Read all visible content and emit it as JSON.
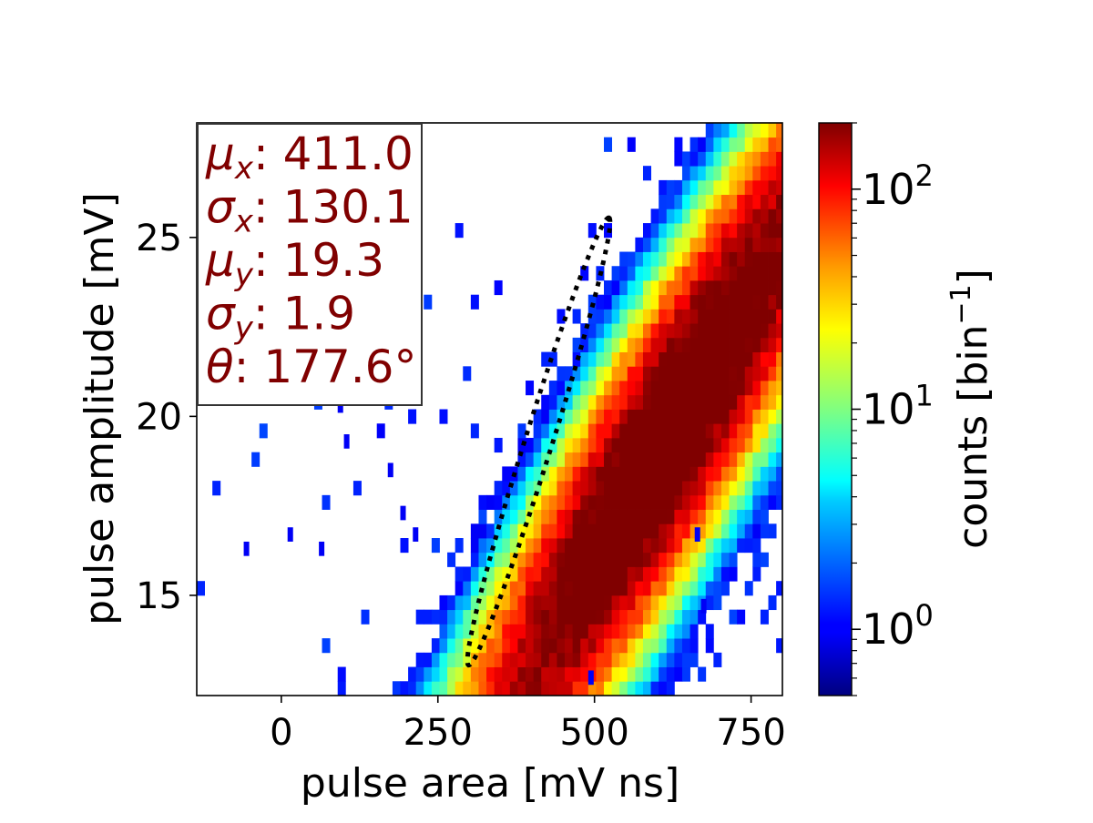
{
  "chart_data": {
    "type": "heatmap",
    "title": "",
    "xlabel": "pulse area [mV ns]",
    "ylabel": "pulse amplitude [mV]",
    "xlim": [
      -135,
      800
    ],
    "ylim": [
      12.2,
      28.2
    ],
    "xticks": [
      {
        "value": 0,
        "label": "0"
      },
      {
        "value": 250,
        "label": "250"
      },
      {
        "value": 500,
        "label": "500"
      },
      {
        "value": 750,
        "label": "750"
      }
    ],
    "yticks": [
      {
        "value": 15,
        "label": "15"
      },
      {
        "value": 20,
        "label": "20"
      },
      {
        "value": 25,
        "label": "25"
      }
    ],
    "colorbar": {
      "label": "counts [bin",
      "label_sup": "−1",
      "label_end": "]",
      "scale": "log",
      "colormap": "jet",
      "range": [
        0.5,
        200
      ],
      "ticks": [
        {
          "value": 1,
          "base": "10",
          "exp": "0"
        },
        {
          "value": 10,
          "base": "10",
          "exp": "1"
        },
        {
          "value": 100,
          "base": "10",
          "exp": "2"
        }
      ]
    },
    "stats": [
      {
        "sym": "μ",
        "sub": "x",
        "value": ": 411.0"
      },
      {
        "sym": "σ",
        "sub": "x",
        "value": ": 130.1"
      },
      {
        "sym": "μ",
        "sub": "y",
        "value": ": 19.3"
      },
      {
        "sym": "σ",
        "sub": "y",
        "value": ": 1.9"
      },
      {
        "sym": "θ",
        "sub": "",
        "value": ": 177.6°"
      }
    ],
    "fit": {
      "type": "ellipse",
      "center": [
        411.0,
        19.3
      ],
      "sigma_x": 130.1,
      "sigma_y": 1.9,
      "theta_deg": 177.6,
      "style": "dotted",
      "color": "#000000"
    },
    "bins": {
      "x_width": 12.5,
      "y_width": 0.4,
      "ridge_offset": 32.5,
      "ridge_slope_per_mV": 30,
      "count_scale": 380
    },
    "isolated_bins": [
      [
        -60,
        16.1
      ],
      [
        10,
        16.5
      ],
      [
        60,
        16.1
      ],
      [
        90,
        20.1
      ],
      [
        130,
        21.1
      ],
      [
        100,
        19.1
      ],
      [
        190,
        17.1
      ],
      [
        210,
        16.5
      ],
      [
        170,
        18.3
      ],
      [
        490,
        12.5
      ],
      [
        660,
        16.5
      ],
      [
        670,
        14.5
      ]
    ]
  }
}
